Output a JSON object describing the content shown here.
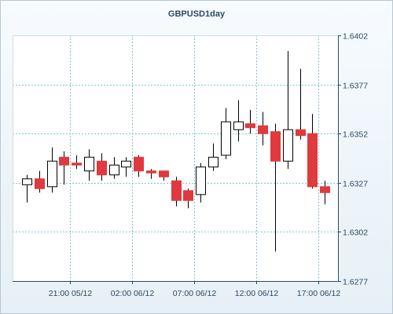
{
  "chart_data": {
    "type": "candlestick",
    "title": "GBPUSD1day",
    "grid": true,
    "colors": {
      "up_body": "#ffffff",
      "down_body": "#e0393e",
      "wick": "#000000",
      "grid": "#7cc7cf",
      "axis": "#2a4a63"
    },
    "ylim": [
      1.6277,
      1.6402
    ],
    "y_ticks": [
      "1.6402",
      "1.6377",
      "1.6352",
      "1.6327",
      "1.6302",
      "1.6277"
    ],
    "x_ticks": [
      "21:00 05/12",
      "02:00 06/12",
      "07:00 06/12",
      "12:00 06/12",
      "17:00 06/12"
    ],
    "x_tick_after_index": [
      3.5,
      8.5,
      13.5,
      18.5,
      23.5
    ],
    "candles": [
      {
        "open": 1.6326,
        "high": 1.6331,
        "low": 1.6317,
        "close": 1.6329
      },
      {
        "open": 1.6329,
        "high": 1.6333,
        "low": 1.6322,
        "close": 1.6324
      },
      {
        "open": 1.6325,
        "high": 1.6345,
        "low": 1.6322,
        "close": 1.6338
      },
      {
        "open": 1.634,
        "high": 1.6343,
        "low": 1.6326,
        "close": 1.6336
      },
      {
        "open": 1.6337,
        "high": 1.6341,
        "low": 1.6334,
        "close": 1.6336
      },
      {
        "open": 1.6333,
        "high": 1.6344,
        "low": 1.6328,
        "close": 1.634
      },
      {
        "open": 1.6338,
        "high": 1.6342,
        "low": 1.6328,
        "close": 1.6331
      },
      {
        "open": 1.6331,
        "high": 1.634,
        "low": 1.6329,
        "close": 1.6336
      },
      {
        "open": 1.6335,
        "high": 1.634,
        "low": 1.633,
        "close": 1.6338
      },
      {
        "open": 1.634,
        "high": 1.6341,
        "low": 1.633,
        "close": 1.6333
      },
      {
        "open": 1.6333,
        "high": 1.6334,
        "low": 1.6329,
        "close": 1.6332
      },
      {
        "open": 1.6333,
        "high": 1.6333,
        "low": 1.6328,
        "close": 1.633
      },
      {
        "open": 1.6328,
        "high": 1.633,
        "low": 1.6315,
        "close": 1.6318
      },
      {
        "open": 1.6323,
        "high": 1.6324,
        "low": 1.6314,
        "close": 1.6318
      },
      {
        "open": 1.6321,
        "high": 1.6337,
        "low": 1.6317,
        "close": 1.6335
      },
      {
        "open": 1.6335,
        "high": 1.6347,
        "low": 1.6333,
        "close": 1.634
      },
      {
        "open": 1.6341,
        "high": 1.6365,
        "low": 1.6339,
        "close": 1.6358
      },
      {
        "open": 1.6354,
        "high": 1.6369,
        "low": 1.6348,
        "close": 1.6358
      },
      {
        "open": 1.6357,
        "high": 1.6364,
        "low": 1.6352,
        "close": 1.6355
      },
      {
        "open": 1.6356,
        "high": 1.6363,
        "low": 1.6346,
        "close": 1.6352
      },
      {
        "open": 1.6353,
        "high": 1.6357,
        "low": 1.6292,
        "close": 1.6338
      },
      {
        "open": 1.6338,
        "high": 1.6394,
        "low": 1.6334,
        "close": 1.6354
      },
      {
        "open": 1.6354,
        "high": 1.6385,
        "low": 1.6349,
        "close": 1.6351
      },
      {
        "open": 1.6352,
        "high": 1.6362,
        "low": 1.6324,
        "close": 1.6325
      },
      {
        "open": 1.6325,
        "high": 1.6328,
        "low": 1.6316,
        "close": 1.6322
      }
    ]
  }
}
